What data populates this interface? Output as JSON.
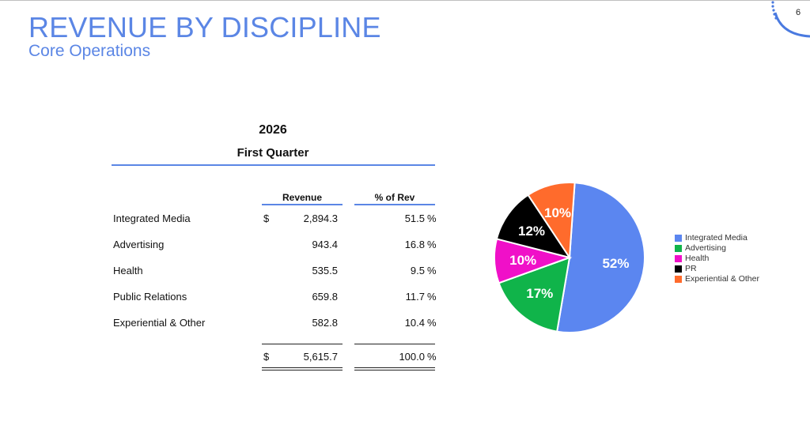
{
  "header": {
    "title": "REVENUE BY DISCIPLINE",
    "subtitle": "Core Operations",
    "page_number": "6"
  },
  "table": {
    "year": "2026",
    "period": "First Quarter",
    "col_revenue": "Revenue",
    "col_pct": "% of Rev",
    "currency": "$",
    "percent_sign": "%",
    "rows": [
      {
        "label": "Integrated Media",
        "revenue": "2,894.3",
        "pct": "51.5",
        "currency": "$"
      },
      {
        "label": "Advertising",
        "revenue": "943.4",
        "pct": "16.8",
        "currency": ""
      },
      {
        "label": "Health",
        "revenue": "535.5",
        "pct": "9.5",
        "currency": ""
      },
      {
        "label": "Public Relations",
        "revenue": "659.8",
        "pct": "11.7",
        "currency": ""
      },
      {
        "label": "Experiential & Other",
        "revenue": "582.8",
        "pct": "10.4",
        "currency": ""
      }
    ],
    "total": {
      "revenue": "5,615.7",
      "pct": "100.0",
      "currency": "$"
    }
  },
  "chart_data": {
    "type": "pie",
    "title": "",
    "categories": [
      "Integrated Media",
      "Advertising",
      "Health",
      "PR",
      "Experiential & Other"
    ],
    "values": [
      51.5,
      16.8,
      9.5,
      11.7,
      10.4
    ],
    "data_labels": [
      "52%",
      "17%",
      "10%",
      "12%",
      "10%"
    ],
    "colors": [
      "#5b86f0",
      "#10b44a",
      "#f010c8",
      "#000000",
      "#ff6b2c"
    ],
    "legend_position": "right",
    "start_angle_deg": 4
  }
}
